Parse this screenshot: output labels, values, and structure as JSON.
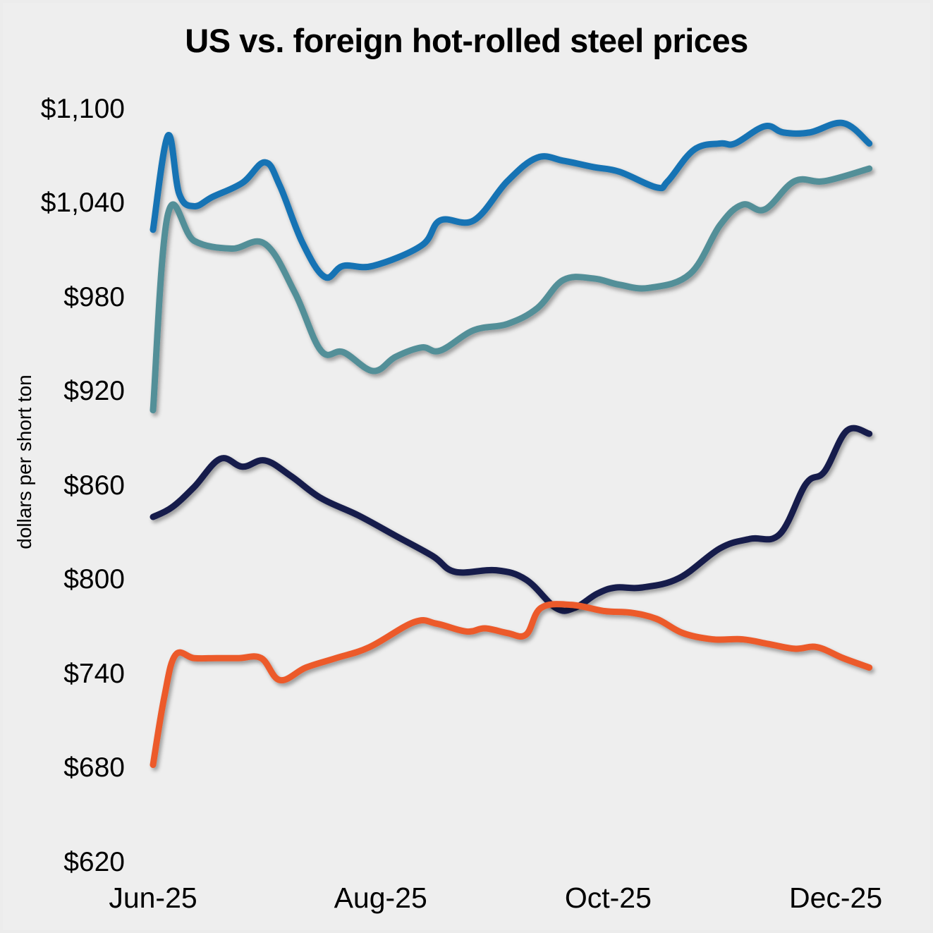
{
  "chart_data": {
    "type": "line",
    "title": "US vs. foreign hot-rolled steel prices",
    "xlabel": "",
    "ylabel": "dollars per short ton",
    "ylim": [
      620,
      1100
    ],
    "yticks": [
      "$1,100",
      "$1,040",
      "$980",
      "$920",
      "$860",
      "$800",
      "$740",
      "$680",
      "$620"
    ],
    "ytick_values": [
      1100,
      1040,
      980,
      920,
      860,
      800,
      740,
      680,
      620
    ],
    "xticks": [
      "Jun-25",
      "Aug-25",
      "Oct-25",
      "Dec-25"
    ],
    "xtick_days": [
      0,
      61,
      122,
      183
    ],
    "x_unit": "days since Jun 1, 2025",
    "grid": false,
    "legend": "none",
    "series": [
      {
        "name": "series-1-blue",
        "color": "#1273b4",
        "x": [
          0,
          4,
          7,
          11,
          16,
          24,
          30,
          34,
          40,
          46,
          51,
          59,
          72,
          77,
          86,
          95,
          103,
          110,
          118,
          125,
          135,
          138,
          145,
          152,
          156,
          164,
          169,
          176,
          185,
          192
        ],
        "values": [
          1023,
          1083,
          1046,
          1038,
          1044,
          1053,
          1066,
          1051,
          1015,
          993,
          1000,
          1000,
          1013,
          1029,
          1029,
          1054,
          1069,
          1067,
          1063,
          1060,
          1050,
          1054,
          1074,
          1078,
          1078,
          1089,
          1085,
          1085,
          1091,
          1078
        ]
      },
      {
        "name": "series-2-teal",
        "color": "#528f98",
        "x": [
          0,
          4,
          11,
          21,
          30,
          38,
          45,
          51,
          59,
          65,
          72,
          77,
          86,
          95,
          103,
          110,
          118,
          125,
          133,
          144,
          152,
          158,
          164,
          172,
          180,
          192
        ],
        "values": [
          908,
          1033,
          1016,
          1011,
          1014,
          983,
          946,
          945,
          933,
          942,
          948,
          946,
          959,
          963,
          973,
          991,
          992,
          988,
          986,
          995,
          1026,
          1039,
          1036,
          1054,
          1054,
          1062
        ]
      },
      {
        "name": "series-3-navy",
        "color": "#151b4b",
        "x": [
          0,
          5,
          11,
          18,
          24,
          30,
          37,
          45,
          55,
          65,
          75,
          81,
          92,
          100,
          108,
          113,
          119,
          124,
          131,
          141,
          152,
          160,
          168,
          175,
          180,
          186,
          192
        ],
        "values": [
          840,
          846,
          859,
          877,
          872,
          876,
          866,
          852,
          841,
          828,
          815,
          805,
          806,
          800,
          782,
          782,
          791,
          795,
          795,
          801,
          820,
          826,
          829,
          861,
          869,
          895,
          893
        ]
      },
      {
        "name": "series-4-orange",
        "color": "#ec5a2c",
        "x": [
          0,
          3,
          6,
          11,
          17,
          23,
          29,
          34,
          41,
          49,
          58,
          70,
          76,
          84,
          89,
          95,
          100,
          104,
          112,
          121,
          128,
          135,
          142,
          150,
          158,
          165,
          172,
          178,
          185,
          192
        ],
        "values": [
          682,
          725,
          752,
          750,
          750,
          750,
          750,
          736,
          744,
          750,
          757,
          773,
          772,
          767,
          769,
          766,
          765,
          782,
          784,
          780,
          779,
          775,
          766,
          762,
          762,
          759,
          756,
          757,
          750,
          744
        ]
      }
    ]
  }
}
